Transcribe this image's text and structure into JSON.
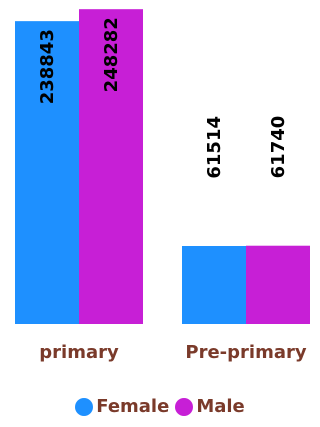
{
  "chart_data": {
    "type": "bar",
    "categories": [
      "primary",
      "Pre-primary"
    ],
    "series": [
      {
        "name": "Female",
        "color": "#1e90ff",
        "values": [
          238843,
          61514
        ]
      },
      {
        "name": "Male",
        "color": "#c71fd6",
        "values": [
          248282,
          61740
        ]
      }
    ],
    "ylim": [
      0,
      250000
    ],
    "grid": false,
    "legend": "bottom",
    "category_label_color": "#7a3a2a"
  }
}
